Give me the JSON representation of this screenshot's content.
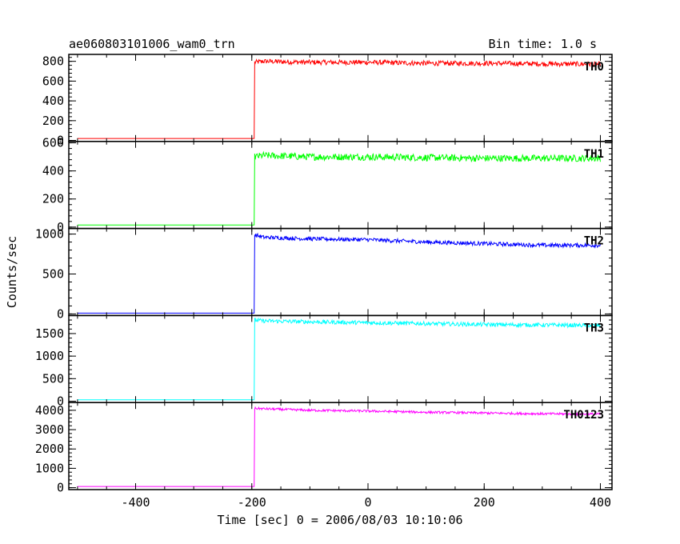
{
  "chart_data": {
    "type": "line",
    "title": "ae060803101006_wam0_trn",
    "subtitle": "Bin time: 1.0 s",
    "xlabel": "Time [sec] 0 = 2006/08/03 10:10:06",
    "ylabel": "Counts/sec",
    "xlim": [
      -515,
      420
    ],
    "x_ticks": [
      -400,
      -200,
      0,
      200,
      400
    ],
    "onset_x": -195,
    "grid": false,
    "panels": [
      {
        "name": "TH0",
        "color": "#ff0000",
        "ylim": [
          -10,
          870
        ],
        "y_ticks": [
          0,
          200,
          400,
          600,
          800
        ],
        "x": [
          -500,
          -196,
          -195,
          -180,
          -100,
          0,
          100,
          200,
          300,
          400
        ],
        "values": [
          20,
          20,
          790,
          800,
          790,
          790,
          780,
          780,
          775,
          770
        ],
        "noise": 25
      },
      {
        "name": "TH1",
        "color": "#00ff00",
        "ylim": [
          -10,
          610
        ],
        "y_ticks": [
          0,
          200,
          400,
          600
        ],
        "x": [
          -500,
          -196,
          -195,
          -180,
          -100,
          0,
          100,
          200,
          300,
          400
        ],
        "values": [
          15,
          15,
          500,
          510,
          500,
          500,
          495,
          490,
          490,
          490
        ],
        "noise": 25
      },
      {
        "name": "TH2",
        "color": "#0000ff",
        "ylim": [
          -20,
          1070
        ],
        "y_ticks": [
          0,
          500,
          1000
        ],
        "x": [
          -500,
          -196,
          -195,
          -180,
          -100,
          0,
          100,
          200,
          300,
          400
        ],
        "values": [
          10,
          10,
          990,
          960,
          940,
          930,
          900,
          880,
          860,
          860
        ],
        "noise": 25
      },
      {
        "name": "TH3",
        "color": "#00ffff",
        "ylim": [
          -30,
          1900
        ],
        "y_ticks": [
          0,
          500,
          1000,
          1500
        ],
        "x": [
          -500,
          -196,
          -195,
          -180,
          -100,
          0,
          100,
          200,
          300,
          400
        ],
        "values": [
          30,
          30,
          1800,
          1780,
          1760,
          1740,
          1720,
          1700,
          1690,
          1680
        ],
        "noise": 45
      },
      {
        "name": "TH0123",
        "color": "#ff00ff",
        "ylim": [
          -100,
          4400
        ],
        "y_ticks": [
          0,
          1000,
          2000,
          3000,
          4000
        ],
        "x": [
          -500,
          -196,
          -195,
          -180,
          -100,
          0,
          100,
          200,
          300,
          400
        ],
        "values": [
          60,
          60,
          4100,
          4080,
          4000,
          3960,
          3900,
          3860,
          3820,
          3800
        ],
        "noise": 60
      }
    ]
  }
}
